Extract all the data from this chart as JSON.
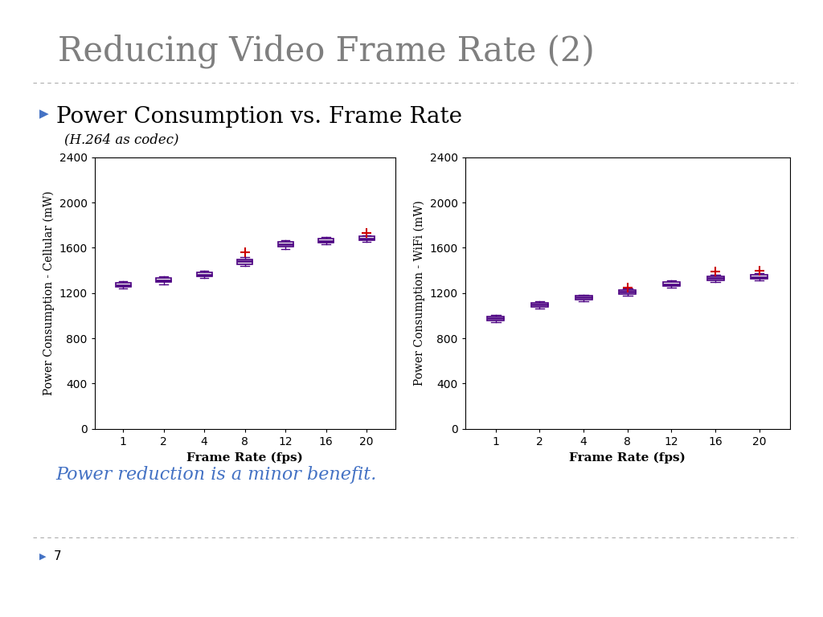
{
  "title": "Reducing Video Frame Rate (2)",
  "bullet_text": "Power Consumption vs. Frame Rate",
  "subtitle": "(H.264 as codec)",
  "conclusion": "Power reduction is a minor benefit.",
  "page_number": "7",
  "background_color": "#ffffff",
  "title_color": "#7f7f7f",
  "bullet_color": "#000000",
  "subtitle_color": "#000000",
  "conclusion_color": "#4472c4",
  "frame_rates": [
    1,
    2,
    4,
    8,
    12,
    16,
    20
  ],
  "cellular": {
    "ylabel": "Power Consumption - Cellular (mW)",
    "xlabel": "Frame Rate (fps)",
    "ylim": [
      0,
      2400
    ],
    "yticks": [
      0,
      400,
      800,
      1200,
      1600,
      2000,
      2400
    ],
    "medians": [
      1270,
      1310,
      1360,
      1480,
      1630,
      1660,
      1680
    ],
    "q1": [
      1255,
      1295,
      1345,
      1455,
      1610,
      1645,
      1665
    ],
    "q3": [
      1290,
      1330,
      1385,
      1500,
      1650,
      1680,
      1700
    ],
    "whislo": [
      1240,
      1280,
      1330,
      1440,
      1590,
      1630,
      1650
    ],
    "whishi": [
      1305,
      1348,
      1400,
      1515,
      1665,
      1695,
      1710
    ],
    "fliers_y": [
      null,
      null,
      null,
      1560,
      null,
      null,
      1730
    ],
    "fliers_x": [
      null,
      null,
      null,
      8,
      null,
      null,
      20
    ]
  },
  "wifi": {
    "ylabel": "Power Consumption - WiFi (mW)",
    "xlabel": "Frame Rate (fps)",
    "ylim": [
      0,
      2400
    ],
    "yticks": [
      0,
      400,
      800,
      1200,
      1600,
      2000,
      2400
    ],
    "medians": [
      975,
      1100,
      1160,
      1210,
      1275,
      1330,
      1340
    ],
    "q1": [
      955,
      1080,
      1145,
      1195,
      1260,
      1315,
      1325
    ],
    "q3": [
      990,
      1115,
      1175,
      1225,
      1295,
      1350,
      1360
    ],
    "whislo": [
      940,
      1065,
      1130,
      1180,
      1245,
      1300,
      1310
    ],
    "whishi": [
      1005,
      1130,
      1185,
      1240,
      1310,
      1365,
      1375
    ],
    "fliers_y": [
      null,
      null,
      null,
      1250,
      null,
      1390,
      1400
    ],
    "fliers_x": [
      null,
      null,
      null,
      8,
      null,
      16,
      20
    ]
  },
  "box_color": "#4b0082",
  "median_color": "#4b0082",
  "whisker_color": "#4b0082",
  "flier_color": "#cc0000",
  "box_facecolor": "#e8e8e8"
}
